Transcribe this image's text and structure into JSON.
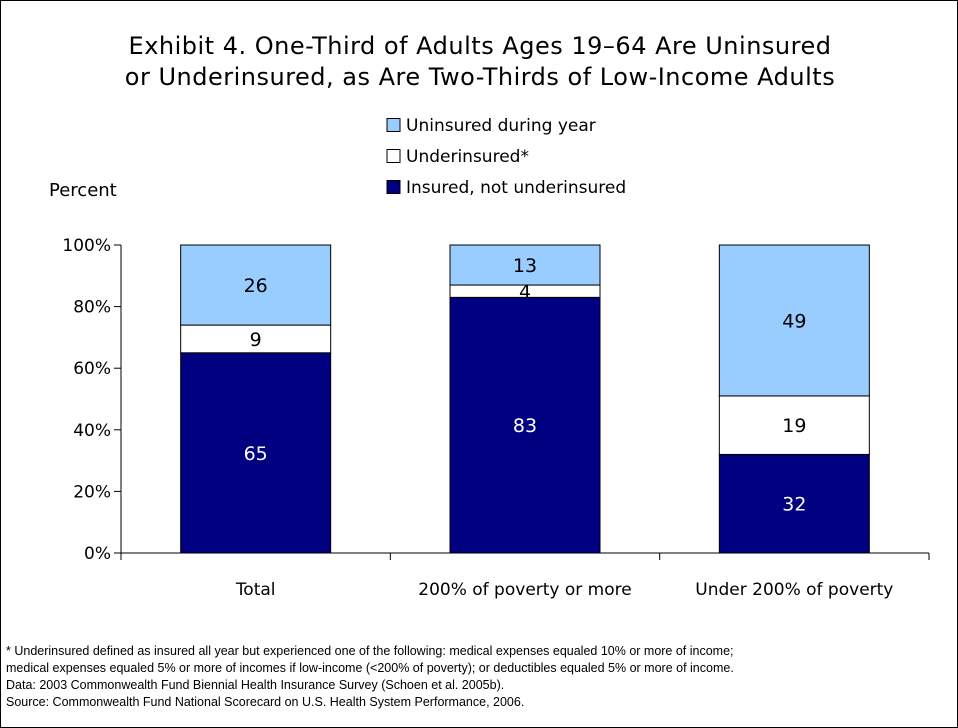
{
  "chart_data": {
    "type": "bar",
    "stacked": true,
    "title_lines": [
      "Exhibit 4. One-Third of Adults Ages 19–64 Are Uninsured",
      "or Underinsured, as Are Two-Thirds of Low-Income Adults"
    ],
    "ylabel": "Percent",
    "xlabel": "",
    "ylim": [
      0,
      100
    ],
    "yticks": [
      "0%",
      "20%",
      "40%",
      "60%",
      "80%",
      "100%"
    ],
    "categories": [
      "Total",
      "200% of poverty or more",
      "Under 200% of poverty"
    ],
    "series": [
      {
        "name": "Insured, not underinsured",
        "values": [
          65,
          83,
          32
        ],
        "labels": [
          "65",
          "83",
          "32"
        ],
        "color": "#000080",
        "label_color": "#ffffff"
      },
      {
        "name": "Underinsured*",
        "values": [
          9,
          4,
          19
        ],
        "labels": [
          "9",
          "4",
          "19"
        ],
        "color": "#ffffff",
        "label_color": "#000000"
      },
      {
        "name": "Uninsured during year",
        "values": [
          26,
          13,
          49
        ],
        "labels": [
          "26",
          "13",
          "49"
        ],
        "color": "#99ccff",
        "label_color": "#000000"
      }
    ],
    "legend_order": [
      "Uninsured during year",
      "Underinsured*",
      "Insured, not underinsured"
    ],
    "legend_position": "top-center",
    "grid": false
  },
  "footnotes": [
    "* Underinsured defined as insured all year but experienced one of the following: medical expenses equaled 10% or more of income;",
    "medical expenses equaled 5% or more of incomes if low-income (<200% of poverty); or deductibles equaled 5% or more of income.",
    "Data: 2003 Commonwealth Fund Biennial Health Insurance Survey (Schoen et al. 2005b).",
    "Source: Commonwealth Fund National Scorecard on U.S. Health System Performance, 2006."
  ]
}
